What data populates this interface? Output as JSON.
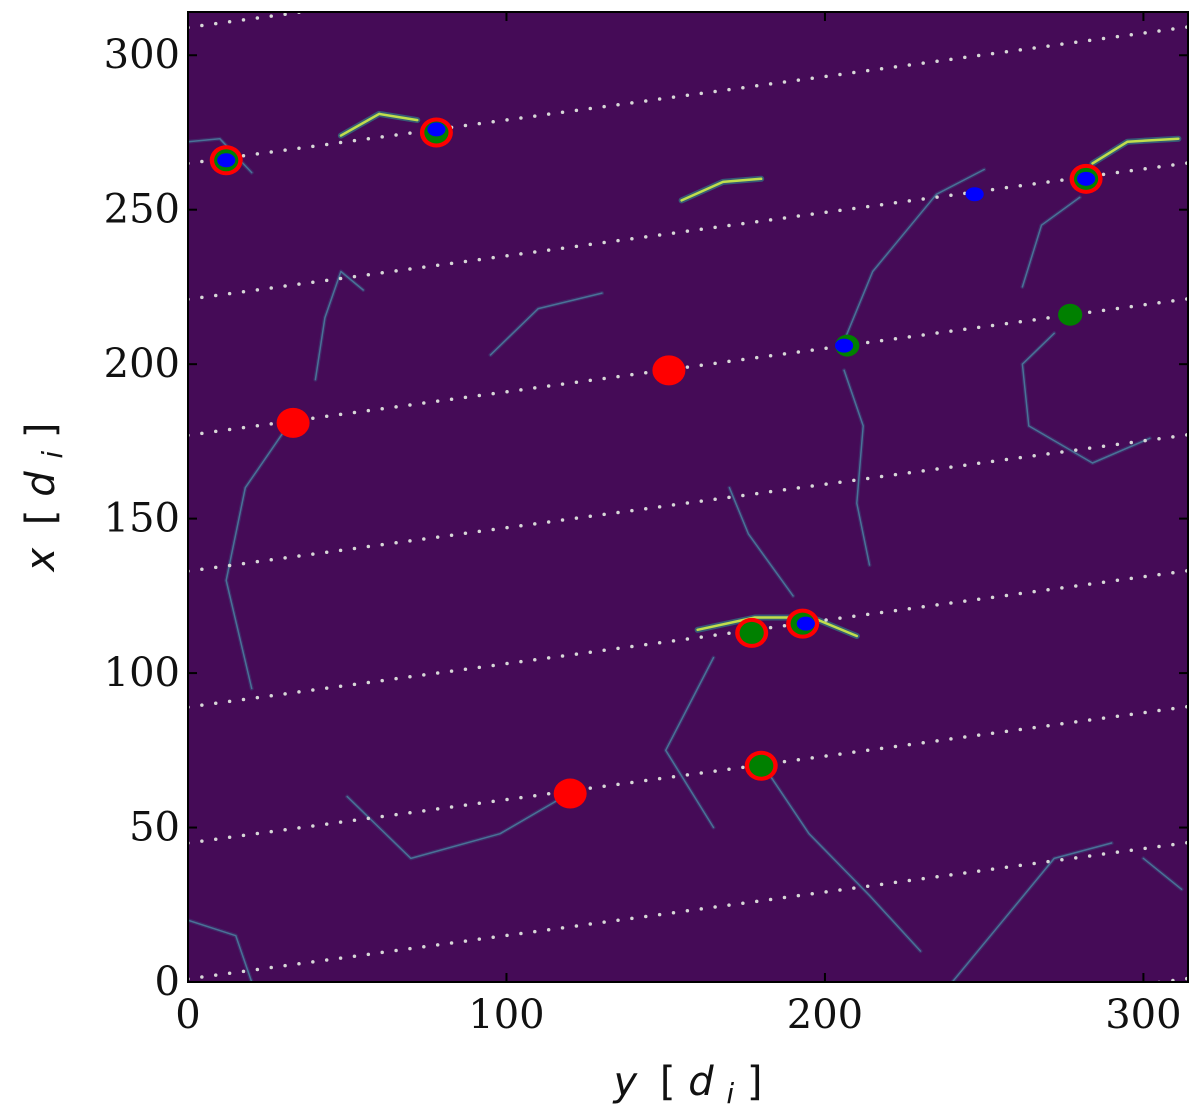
{
  "chart_data": {
    "type": "scatter",
    "title": "",
    "xlabel": "y [d_i]",
    "ylabel": "x [d_i]",
    "xlim": [
      0,
      314
    ],
    "ylim": [
      0,
      314
    ],
    "x_ticks": [
      0,
      100,
      200,
      300
    ],
    "y_ticks": [
      0,
      50,
      100,
      150,
      200,
      250,
      300
    ],
    "x_tick_labels": [
      "0",
      "100",
      "200",
      "300"
    ],
    "y_tick_labels": [
      "0",
      "50",
      "100",
      "150",
      "200",
      "250",
      "300"
    ],
    "axis_label_parts": {
      "xlabel": {
        "var": "y",
        "open": "[",
        "sym": "d",
        "sub": "i",
        "close": "]"
      },
      "ylabel": {
        "var": "x",
        "open": "[",
        "sym": "d",
        "sub": "i",
        "close": "]"
      }
    },
    "grid": false,
    "legend": "none",
    "background_color": "#450b57",
    "dotted_line_color": "#d7d7d7",
    "dotted_lines": [
      {
        "y0": 0,
        "x0": -43
      },
      {
        "y0": 0,
        "x0": 1
      },
      {
        "y0": 0,
        "x0": 45
      },
      {
        "y0": 0,
        "x0": 89
      },
      {
        "y0": 0,
        "x0": 133
      },
      {
        "y0": 0,
        "x0": 177
      },
      {
        "y0": 0,
        "x0": 221
      },
      {
        "y0": 0,
        "x0": 265
      },
      {
        "y0": 0,
        "x0": 309
      }
    ],
    "line_slope": 0.1406,
    "series": [
      {
        "color": "#ff0000",
        "marker": "large-circle",
        "points": [
          {
            "y": 12,
            "x": 266
          },
          {
            "y": 78,
            "x": 275
          },
          {
            "y": 282,
            "x": 260
          },
          {
            "y": 33,
            "x": 181
          },
          {
            "y": 151,
            "x": 198
          },
          {
            "y": 177,
            "x": 113
          },
          {
            "y": 193,
            "x": 116
          },
          {
            "y": 180,
            "x": 70
          },
          {
            "y": 120,
            "x": 61
          }
        ]
      },
      {
        "color": "#008000",
        "marker": "medium-circle",
        "points": [
          {
            "y": 12,
            "x": 266
          },
          {
            "y": 78,
            "x": 275
          },
          {
            "y": 282,
            "x": 260
          },
          {
            "y": 207,
            "x": 206
          },
          {
            "y": 277,
            "x": 216
          },
          {
            "y": 177,
            "x": 113
          },
          {
            "y": 193,
            "x": 116
          },
          {
            "y": 180,
            "x": 70
          }
        ]
      },
      {
        "color": "#0000ff",
        "marker": "small-circle",
        "points": [
          {
            "y": 12,
            "x": 266
          },
          {
            "y": 78,
            "x": 276
          },
          {
            "y": 282,
            "x": 260
          },
          {
            "y": 247,
            "x": 255
          },
          {
            "y": 206,
            "x": 206
          },
          {
            "y": 194,
            "x": 116
          }
        ]
      }
    ],
    "filaments": [
      {
        "points": [
          [
            48,
            274
          ],
          [
            60,
            281
          ],
          [
            72,
            279
          ]
        ],
        "bright": true
      },
      {
        "points": [
          [
            155,
            253
          ],
          [
            168,
            259
          ],
          [
            180,
            260
          ]
        ],
        "bright": true
      },
      {
        "points": [
          [
            284,
            265
          ],
          [
            295,
            272
          ],
          [
            311,
            273
          ]
        ],
        "bright": true
      },
      {
        "points": [
          [
            160,
            114
          ],
          [
            178,
            118
          ],
          [
            196,
            118
          ],
          [
            210,
            112
          ]
        ],
        "bright": true
      },
      {
        "points": [
          [
            130,
            223
          ],
          [
            110,
            218
          ],
          [
            95,
            203
          ]
        ],
        "bright": false
      },
      {
        "points": [
          [
            40,
            195
          ],
          [
            43,
            215
          ],
          [
            48,
            230
          ],
          [
            55,
            224
          ]
        ],
        "bright": false
      },
      {
        "points": [
          [
            30,
            178
          ],
          [
            18,
            160
          ],
          [
            12,
            130
          ],
          [
            20,
            95
          ]
        ],
        "bright": false
      },
      {
        "points": [
          [
            205,
            205
          ],
          [
            215,
            230
          ],
          [
            235,
            255
          ],
          [
            250,
            263
          ]
        ],
        "bright": false
      },
      {
        "points": [
          [
            280,
            254
          ],
          [
            268,
            245
          ],
          [
            262,
            225
          ]
        ],
        "bright": false
      },
      {
        "points": [
          [
            272,
            210
          ],
          [
            262,
            200
          ],
          [
            264,
            180
          ],
          [
            284,
            168
          ],
          [
            302,
            176
          ]
        ],
        "bright": false
      },
      {
        "points": [
          [
            182,
            68
          ],
          [
            195,
            48
          ],
          [
            214,
            28
          ],
          [
            230,
            10
          ]
        ],
        "bright": false
      },
      {
        "points": [
          [
            118,
            60
          ],
          [
            98,
            48
          ],
          [
            70,
            40
          ],
          [
            50,
            60
          ]
        ],
        "bright": false
      },
      {
        "points": [
          [
            0,
            20
          ],
          [
            15,
            15
          ],
          [
            20,
            0
          ]
        ],
        "bright": false
      },
      {
        "points": [
          [
            240,
            0
          ],
          [
            256,
            20
          ],
          [
            272,
            40
          ],
          [
            290,
            45
          ]
        ],
        "bright": false
      },
      {
        "points": [
          [
            165,
            50
          ],
          [
            150,
            75
          ],
          [
            165,
            105
          ]
        ],
        "bright": false
      },
      {
        "points": [
          [
            170,
            160
          ],
          [
            176,
            145
          ],
          [
            190,
            125
          ]
        ],
        "bright": false
      },
      {
        "points": [
          [
            0,
            272
          ],
          [
            10,
            273
          ],
          [
            20,
            262
          ]
        ],
        "bright": false
      },
      {
        "points": [
          [
            300,
            40
          ],
          [
            312,
            30
          ]
        ],
        "bright": false
      },
      {
        "points": [
          [
            206,
            198
          ],
          [
            212,
            180
          ],
          [
            210,
            155
          ],
          [
            214,
            135
          ]
        ],
        "bright": false
      }
    ]
  }
}
